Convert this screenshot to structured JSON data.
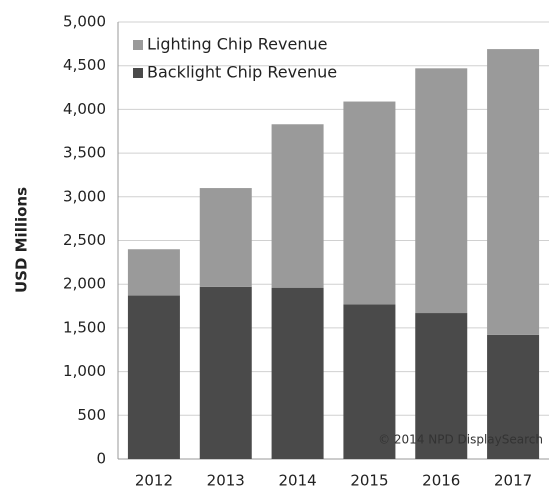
{
  "chart_data": {
    "type": "stacked_bar",
    "y_label": "USD Millions",
    "source": "© 2014 NPD DisplaySearch",
    "categories": [
      "2012",
      "2013",
      "2014",
      "2015",
      "2016",
      "2017"
    ],
    "series": [
      {
        "name": "Backlight Chip Revenue",
        "color": "#4a4a4a",
        "values": [
          1870,
          1970,
          1960,
          1770,
          1670,
          1420
        ]
      },
      {
        "name": "Lighting Chip Revenue",
        "color": "#9a9a9a",
        "values": [
          530,
          1130,
          1870,
          2320,
          2800,
          3270
        ]
      }
    ],
    "ylim": [
      0,
      5000
    ],
    "yticks": [
      0,
      500,
      {
        "value": 1000,
        "label": "1,000"
      },
      {
        "value": 1500,
        "label": "1,500"
      },
      {
        "value": 2000,
        "label": "2,000"
      },
      {
        "value": 2500,
        "label": "2,500"
      },
      {
        "value": 3000,
        "label": "3,000"
      },
      {
        "value": 3500,
        "label": "3,500"
      },
      {
        "value": 4000,
        "label": "4,000"
      },
      {
        "value": 4500,
        "label": "4,500"
      },
      {
        "value": 5000,
        "label": "5,000"
      }
    ],
    "grid": true,
    "legend": "upper left"
  }
}
